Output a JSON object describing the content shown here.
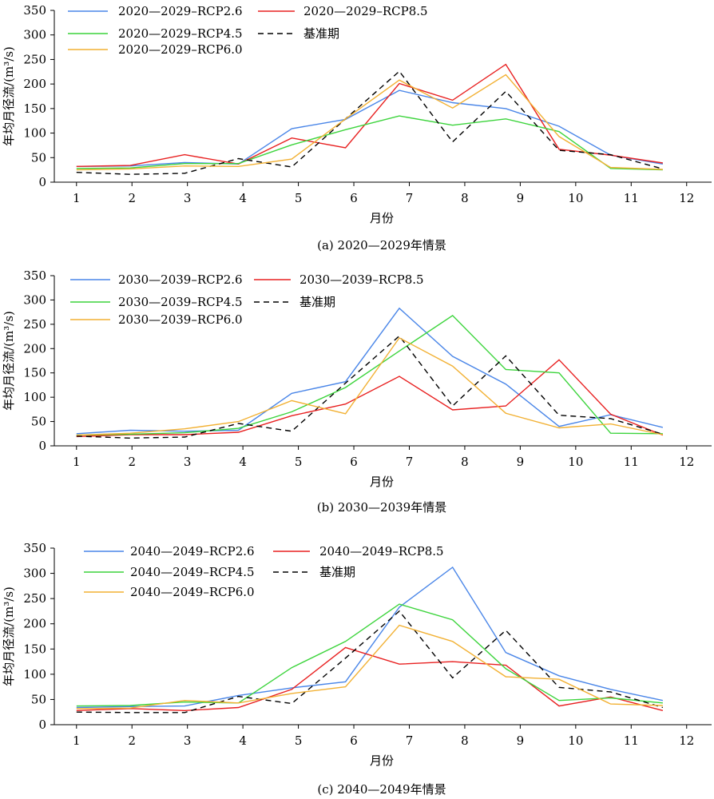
{
  "chart_data": [
    {
      "type": "line",
      "title": "(a) 2020—2029年情景",
      "xlabel": "月份",
      "ylabel": "年均月径流/(m³/s)",
      "xlim": [
        0.6,
        12.45
      ],
      "ylim": [
        0,
        350
      ],
      "xticks": [
        "1",
        "2",
        "3",
        "4",
        "5",
        "6",
        "7",
        "8",
        "9",
        "10",
        "11",
        "12"
      ],
      "yticks": [
        "0",
        "50",
        "100",
        "150",
        "200",
        "250",
        "300",
        "350"
      ],
      "grid": false,
      "legend_position": "top",
      "series": [
        {
          "name": "2020—2029–RCP2.6",
          "color": "#4a86e8",
          "dash": "",
          "x": [
            1.0,
            1.97,
            2.95,
            3.92,
            4.88,
            5.85,
            6.82,
            7.78,
            8.74,
            9.7,
            10.63,
            11.57
          ],
          "y": [
            32,
            33,
            40,
            37,
            109,
            128,
            187,
            162,
            150,
            114,
            55,
            37
          ]
        },
        {
          "name": "2020—2029–RCP8.5",
          "color": "#e82020",
          "dash": "",
          "x": [
            1.0,
            1.97,
            2.95,
            3.92,
            4.88,
            5.85,
            6.82,
            7.78,
            8.74,
            9.7,
            10.63,
            11.57
          ],
          "y": [
            32,
            34,
            56,
            37,
            90,
            70,
            201,
            167,
            240,
            67,
            55,
            39
          ]
        },
        {
          "name": "2020—2029–RCP4.5",
          "color": "#3cd43c",
          "dash": "",
          "x": [
            1.0,
            1.97,
            2.95,
            3.92,
            4.88,
            5.85,
            6.82,
            7.78,
            8.74,
            9.7,
            10.63,
            11.57
          ],
          "y": [
            28,
            29,
            38,
            38,
            76,
            107,
            135,
            116,
            129,
            103,
            28,
            25
          ]
        },
        {
          "name": "基准期",
          "color": "#000000",
          "dash": "7,5",
          "x": [
            1.0,
            1.97,
            2.95,
            3.92,
            4.88,
            5.85,
            6.82,
            7.78,
            8.74,
            9.7,
            10.63,
            11.57
          ],
          "y": [
            20,
            16,
            18,
            48,
            31,
            129,
            226,
            82,
            185,
            65,
            56,
            27
          ]
        },
        {
          "name": "2020—2029–RCP6.0",
          "color": "#f2b134",
          "dash": "",
          "x": [
            1.0,
            1.97,
            2.95,
            3.92,
            4.88,
            5.85,
            6.82,
            7.78,
            8.74,
            9.7,
            10.63,
            11.57
          ],
          "y": [
            25,
            27,
            33,
            32,
            47,
            129,
            208,
            151,
            219,
            93,
            30,
            26
          ]
        }
      ]
    },
    {
      "type": "line",
      "title": "(b) 2030—2039年情景",
      "xlabel": "月份",
      "ylabel": "年均月径流/(m³/s)",
      "xlim": [
        0.6,
        12.45
      ],
      "ylim": [
        0,
        350
      ],
      "xticks": [
        "1",
        "2",
        "3",
        "4",
        "5",
        "6",
        "7",
        "8",
        "9",
        "10",
        "11",
        "12"
      ],
      "yticks": [
        "0",
        "50",
        "100",
        "150",
        "200",
        "250",
        "300",
        "350"
      ],
      "grid": false,
      "legend_position": "top",
      "series": [
        {
          "name": "2030—2039–RCP2.6",
          "color": "#4a86e8",
          "dash": "",
          "x": [
            1.0,
            1.97,
            2.95,
            3.92,
            4.88,
            5.85,
            6.82,
            7.78,
            8.74,
            9.7,
            10.63,
            11.57
          ],
          "y": [
            25,
            32,
            30,
            32,
            108,
            132,
            283,
            184,
            127,
            40,
            64,
            38
          ]
        },
        {
          "name": "2030—2039–RCP8.5",
          "color": "#e82020",
          "dash": "",
          "x": [
            1.0,
            1.97,
            2.95,
            3.92,
            4.88,
            5.85,
            6.82,
            7.78,
            8.74,
            9.7,
            10.63,
            11.57
          ],
          "y": [
            19,
            23,
            23,
            28,
            62,
            86,
            143,
            74,
            82,
            177,
            65,
            22
          ]
        },
        {
          "name": "2030—2039–RCP4.5",
          "color": "#3cd43c",
          "dash": "",
          "x": [
            1.0,
            1.97,
            2.95,
            3.92,
            4.88,
            5.85,
            6.82,
            7.78,
            8.74,
            9.7,
            10.63,
            11.57
          ],
          "y": [
            22,
            24,
            27,
            36,
            70,
            120,
            195,
            268,
            157,
            150,
            26,
            25
          ]
        },
        {
          "name": "基准期",
          "color": "#000000",
          "dash": "7,5",
          "x": [
            1.0,
            1.97,
            2.95,
            3.92,
            4.88,
            5.85,
            6.82,
            7.78,
            8.74,
            9.7,
            10.63,
            11.57
          ],
          "y": [
            20,
            16,
            18,
            46,
            30,
            129,
            226,
            82,
            185,
            63,
            56,
            24
          ]
        },
        {
          "name": "2030—2039–RCP6.0",
          "color": "#f2b134",
          "dash": "",
          "x": [
            1.0,
            1.97,
            2.95,
            3.92,
            4.88,
            5.85,
            6.82,
            7.78,
            8.74,
            9.7,
            10.63,
            11.57
          ],
          "y": [
            22,
            26,
            35,
            50,
            93,
            66,
            222,
            164,
            67,
            37,
            45,
            23
          ]
        }
      ]
    },
    {
      "type": "line",
      "title": "(c) 2040—2049年情景",
      "xlabel": "月份",
      "ylabel": "年均月径流/(m³/s)",
      "xlim": [
        0.6,
        12.45
      ],
      "ylim": [
        0,
        350
      ],
      "xticks": [
        "1",
        "2",
        "3",
        "4",
        "5",
        "6",
        "7",
        "8",
        "9",
        "10",
        "11",
        "12"
      ],
      "yticks": [
        "0",
        "50",
        "100",
        "150",
        "200",
        "250",
        "300",
        "350"
      ],
      "grid": false,
      "legend_position": "top",
      "series": [
        {
          "name": "2040—2049–RCP2.6",
          "color": "#4a86e8",
          "dash": "",
          "x": [
            1.0,
            1.97,
            2.95,
            3.92,
            4.88,
            5.85,
            6.82,
            7.78,
            8.74,
            9.7,
            10.63,
            11.57
          ],
          "y": [
            34,
            36,
            37,
            58,
            73,
            85,
            233,
            312,
            143,
            97,
            70,
            48
          ]
        },
        {
          "name": "2040—2049–RCP8.5",
          "color": "#e82020",
          "dash": "",
          "x": [
            1.0,
            1.97,
            2.95,
            3.92,
            4.88,
            5.85,
            6.82,
            7.78,
            8.74,
            9.7,
            10.63,
            11.57
          ],
          "y": [
            28,
            32,
            28,
            34,
            70,
            153,
            120,
            125,
            118,
            37,
            55,
            28
          ]
        },
        {
          "name": "2040—2049–RCP4.5",
          "color": "#3cd43c",
          "dash": "",
          "x": [
            1.0,
            1.97,
            2.95,
            3.92,
            4.88,
            5.85,
            6.82,
            7.78,
            8.74,
            9.7,
            10.63,
            11.57
          ],
          "y": [
            37,
            38,
            45,
            43,
            113,
            165,
            239,
            208,
            111,
            48,
            53,
            43
          ]
        },
        {
          "name": "基准期",
          "color": "#000000",
          "dash": "7,5",
          "x": [
            1.0,
            1.97,
            2.95,
            3.92,
            4.88,
            5.85,
            6.82,
            7.78,
            8.74,
            9.7,
            10.63,
            11.57
          ],
          "y": [
            25,
            24,
            24,
            56,
            42,
            132,
            225,
            93,
            187,
            74,
            65,
            34
          ]
        },
        {
          "name": "2040—2049–RCP6.0",
          "color": "#f2b134",
          "dash": "",
          "x": [
            1.0,
            1.97,
            2.95,
            3.92,
            4.88,
            5.85,
            6.82,
            7.78,
            8.74,
            9.7,
            10.63,
            11.57
          ],
          "y": [
            32,
            33,
            48,
            43,
            62,
            75,
            197,
            165,
            95,
            90,
            41,
            38
          ]
        }
      ]
    }
  ]
}
